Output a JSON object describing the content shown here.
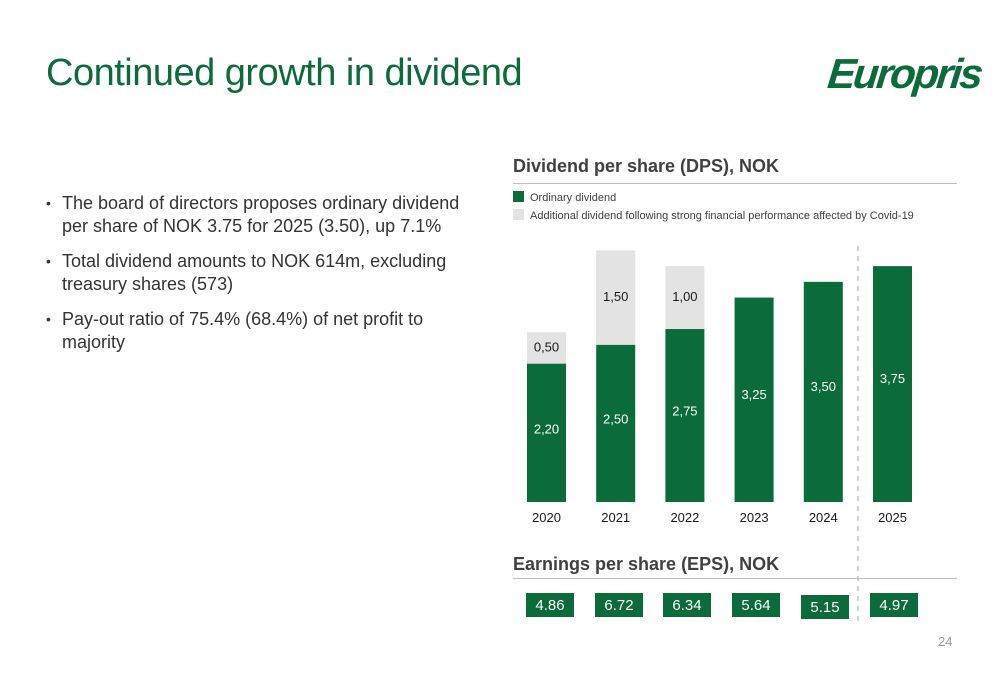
{
  "header": {
    "title": "Continued growth in dividend",
    "logo_text": "Europris"
  },
  "bullets": [
    "The board of directors proposes ordinary dividend per share of NOK 3.75 for 2025 (3.50), up 7.1%",
    "Total dividend amounts to NOK 614m, excluding treasury shares (573)",
    "Pay-out ratio of 75.4% (68.4%) of net profit to majority"
  ],
  "colors": {
    "brand_green": "#0b6b3a",
    "additional_grey": "#e3e3e3"
  },
  "chart_data": [
    {
      "type": "bar",
      "stacked": true,
      "title": "Dividend per share (DPS), NOK",
      "categories": [
        "2020",
        "2021",
        "2022",
        "2023",
        "2024",
        "2025"
      ],
      "series": [
        {
          "name": "Ordinary dividend",
          "values": [
            2.2,
            2.5,
            2.75,
            3.25,
            3.5,
            3.75
          ],
          "labels": [
            "2,20",
            "2,50",
            "2,75",
            "3,25",
            "3,50",
            "3,75"
          ]
        },
        {
          "name": "Additional dividend following strong financial performance affected by Covid-19",
          "values": [
            0.5,
            1.5,
            1.0,
            0,
            0,
            0
          ],
          "labels": [
            "0,50",
            "1,50",
            "1,00",
            "",
            "",
            ""
          ]
        }
      ],
      "xlabel": "",
      "ylabel": "",
      "ylim": [
        0,
        4.5
      ],
      "grid": false,
      "legend": "top-left"
    },
    {
      "type": "table",
      "title": "Earnings per share (EPS), NOK",
      "categories": [
        "2020",
        "2021",
        "2022",
        "2023",
        "2024",
        "2025"
      ],
      "values": [
        "4.86",
        "6.72",
        "6.34",
        "5.64",
        "5.15",
        "4.97"
      ]
    }
  ],
  "page_number": "24"
}
